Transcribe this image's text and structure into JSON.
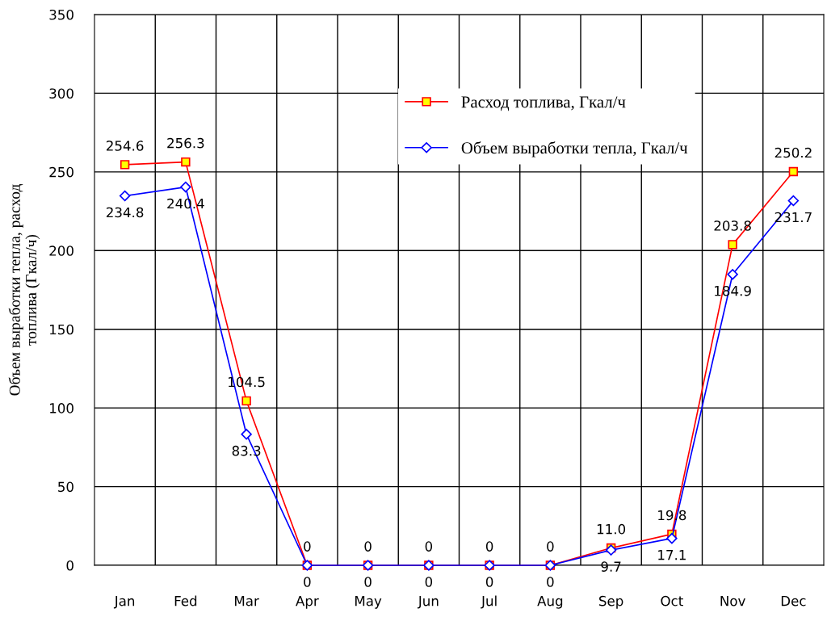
{
  "chart_data": {
    "type": "line",
    "ylabel": "Объем выработки тепла, расход\nтоплива (Гкал/ч)",
    "categories": [
      "Jan",
      "Fed",
      "Mar",
      "Apr",
      "May",
      "Jun",
      "Jul",
      "Aug",
      "Sep",
      "Oct",
      "Nov",
      "Dec"
    ],
    "series": [
      {
        "name": "Расход топлива, Гкал/ч",
        "color": "#ff0000",
        "marker": "square",
        "values": [
          254.6,
          256.3,
          104.5,
          0,
          0,
          0,
          0,
          0,
          11.0,
          19.8,
          203.8,
          250.2
        ],
        "value_labels": [
          "254.6",
          "256.3",
          "104.5",
          "0",
          "0",
          "0",
          "0",
          "0",
          "11.0",
          "19.8",
          "203.8",
          "250.2"
        ]
      },
      {
        "name": "Объем выработки тепла, Гкал/ч",
        "color": "#0000ff",
        "marker": "diamond",
        "values": [
          234.8,
          240.4,
          83.3,
          0,
          0,
          0,
          0,
          0,
          9.7,
          17.1,
          184.9,
          231.7
        ],
        "value_labels": [
          "234.8",
          "240.4",
          "83.3",
          "0",
          "0",
          "0",
          "0",
          "0",
          "9.7",
          "17.1",
          "184.9",
          "231.7"
        ]
      }
    ],
    "ylim": [
      0,
      350
    ],
    "yticks": [
      0,
      50,
      100,
      150,
      200,
      250,
      300,
      350
    ],
    "grid": true,
    "legend": "top"
  }
}
